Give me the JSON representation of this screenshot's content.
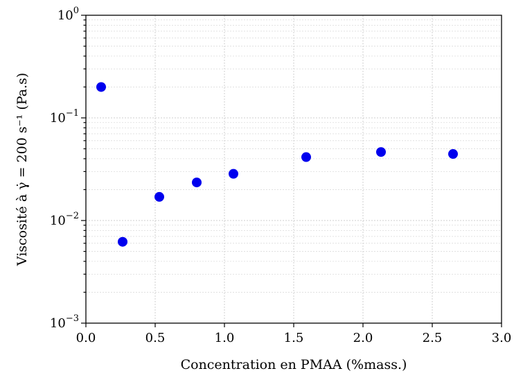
{
  "chart_data": {
    "type": "scatter",
    "xlabel": "Concentration en PMAA (%mass.)",
    "ylabel": "Viscosité à γ̇ = 200 s⁻¹ (Pa.s)",
    "xlim": [
      0.0,
      3.0
    ],
    "ylim": [
      0.001,
      1.0
    ],
    "yscale": "log",
    "grid": "on (major and minor, dotted)",
    "x_ticks": [
      "0.0",
      "0.5",
      "1.0",
      "1.5",
      "2.0",
      "2.5",
      "3.0"
    ],
    "x_tick_values": [
      0.0,
      0.5,
      1.0,
      1.5,
      2.0,
      2.5,
      3.0
    ],
    "y_ticks": [
      {
        "base": "10",
        "exp": "0",
        "value": 1.0
      },
      {
        "base": "10",
        "exp": "−1",
        "value": 0.1
      },
      {
        "base": "10",
        "exp": "−2",
        "value": 0.01
      },
      {
        "base": "10",
        "exp": "−3",
        "value": 0.001
      }
    ],
    "marker_color": "#0000ee",
    "points": [
      {
        "x": 0.11,
        "y": 0.2
      },
      {
        "x": 0.265,
        "y": 0.0062
      },
      {
        "x": 0.53,
        "y": 0.017
      },
      {
        "x": 0.8,
        "y": 0.0235
      },
      {
        "x": 1.065,
        "y": 0.0285
      },
      {
        "x": 1.59,
        "y": 0.0415
      },
      {
        "x": 2.13,
        "y": 0.0465
      },
      {
        "x": 2.65,
        "y": 0.0445
      }
    ]
  }
}
